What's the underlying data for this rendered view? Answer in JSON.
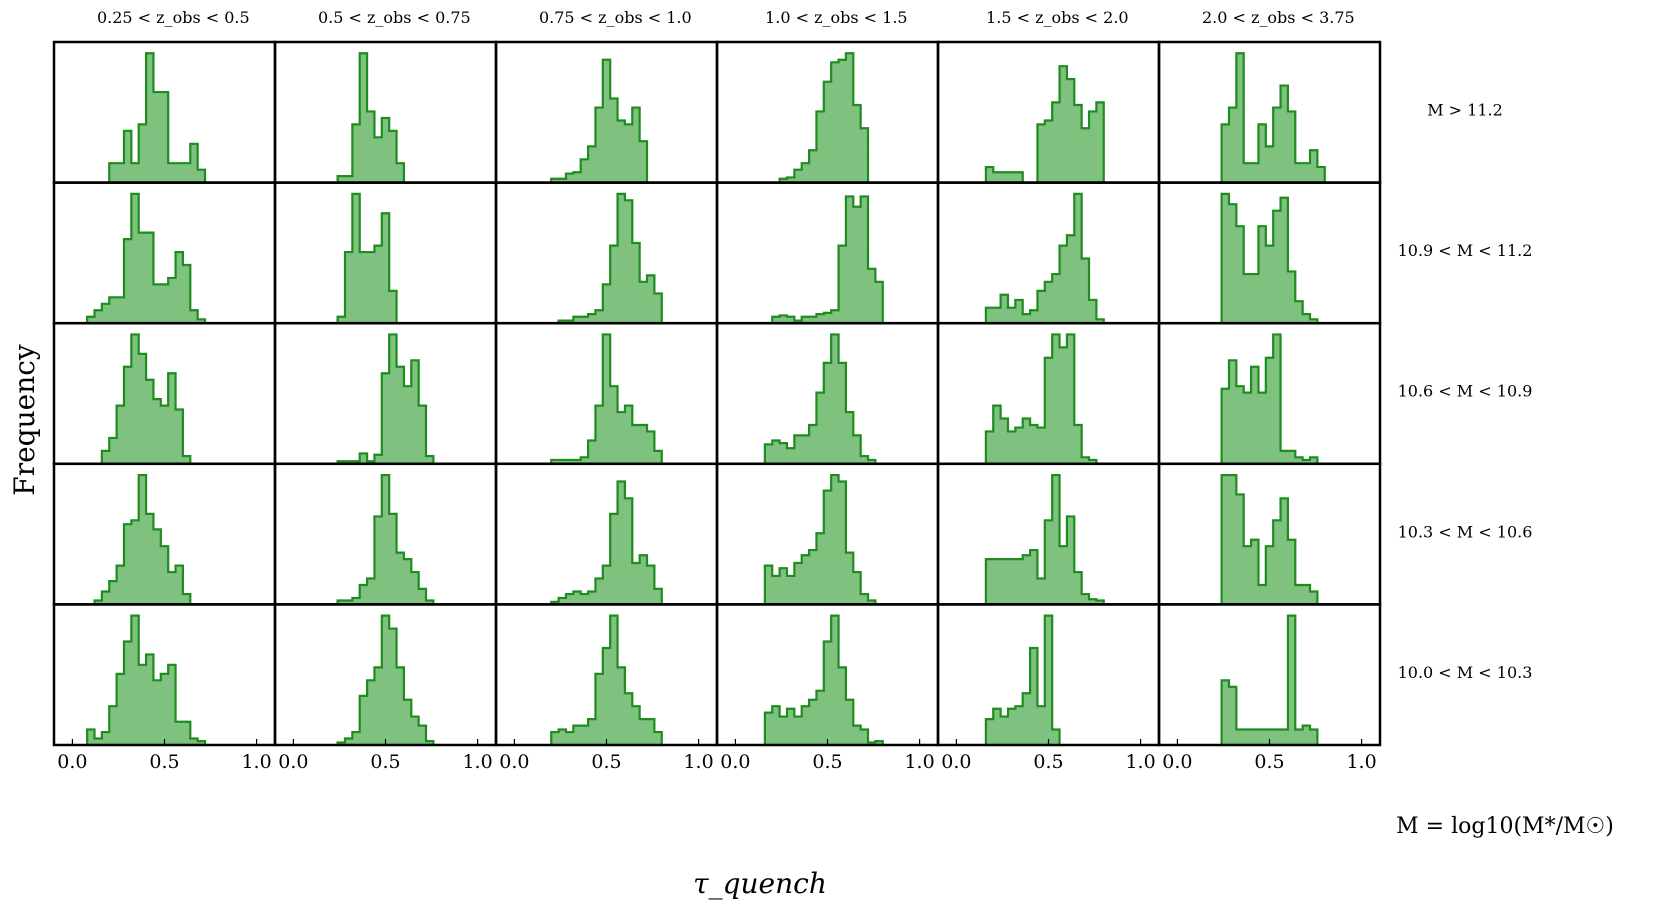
{
  "chart_data": {
    "type": "histogram-grid",
    "ylabel": "Frequency",
    "xlabel": "τ_quench",
    "mass_definition": "M = log10(M*/M☉)",
    "x_ticks": [
      "0.0",
      "0.5",
      "1.0"
    ],
    "x_tick_values": [
      0.0,
      0.5,
      1.0
    ],
    "xlim": [
      -0.1,
      1.1
    ],
    "grid": false,
    "legend": "none",
    "colors": {
      "fill": "#7fc17f",
      "edge": "#1f8c1f",
      "frame": "#000000"
    },
    "columns": [
      {
        "label": "0.25 < z_obs < 0.5"
      },
      {
        "label": "0.5 < z_obs < 0.75"
      },
      {
        "label": "0.75 < z_obs < 1.0"
      },
      {
        "label": "1.0 < z_obs < 1.5"
      },
      {
        "label": "1.5 < z_obs < 2.0"
      },
      {
        "label": "2.0 < z_obs < 3.75"
      }
    ],
    "rows": [
      {
        "label": "M > 11.2"
      },
      {
        "label": "10.9 < M < 11.2"
      },
      {
        "label": "10.6 < M < 10.9"
      },
      {
        "label": "10.3 < M < 10.6"
      },
      {
        "label": "10.0 < M < 10.3"
      }
    ],
    "bin_start": 0.0,
    "bin_width": 0.04,
    "histograms": [
      [
        [
          0,
          0,
          0,
          0,
          0,
          0.15,
          0.15,
          0.4,
          0.15,
          0.45,
          1.0,
          0.7,
          0.7,
          0.15,
          0.15,
          0.15,
          0.3,
          0.1,
          0,
          0
        ],
        [
          0,
          0,
          0,
          0,
          0,
          0,
          0.05,
          0.05,
          0.45,
          1.0,
          0.55,
          0.35,
          0.5,
          0.4,
          0.15,
          0,
          0,
          0,
          0,
          0
        ],
        [
          0,
          0,
          0,
          0,
          0,
          0.03,
          0.03,
          0.07,
          0.08,
          0.18,
          0.28,
          0.58,
          0.95,
          0.65,
          0.48,
          0.45,
          0.58,
          0.32,
          0,
          0
        ],
        [
          0,
          0,
          0,
          0,
          0,
          0,
          0.03,
          0.04,
          0.1,
          0.15,
          0.25,
          0.55,
          0.78,
          0.93,
          0.95,
          1.0,
          0.6,
          0.42,
          0,
          0
        ],
        [
          0,
          0,
          0,
          0,
          0.12,
          0.08,
          0.08,
          0.08,
          0.08,
          0,
          0,
          0.45,
          0.48,
          0.62,
          0.9,
          0.8,
          0.6,
          0.42,
          0.55,
          0.62
        ],
        [
          0,
          0,
          0,
          0,
          0,
          0,
          0.45,
          0.58,
          1.0,
          0.15,
          0.15,
          0.45,
          0.28,
          0.58,
          0.75,
          0.55,
          0.15,
          0.15,
          0.25,
          0.12
        ]
      ],
      [
        [
          0,
          0,
          0.05,
          0.1,
          0.15,
          0.2,
          0.2,
          0.65,
          1.0,
          0.7,
          0.7,
          0.3,
          0.3,
          0.35,
          0.55,
          0.45,
          0.1,
          0.03,
          0,
          0
        ],
        [
          0,
          0,
          0,
          0,
          0,
          0,
          0.05,
          0.55,
          1.0,
          0.55,
          0.55,
          0.6,
          0.85,
          0.25,
          0,
          0,
          0,
          0,
          0,
          0
        ],
        [
          0,
          0,
          0,
          0,
          0,
          0,
          0.02,
          0.02,
          0.05,
          0.05,
          0.07,
          0.1,
          0.3,
          0.6,
          1.0,
          0.95,
          0.62,
          0.32,
          0.37,
          0.23
        ],
        [
          0,
          0,
          0,
          0,
          0,
          0.05,
          0.06,
          0.05,
          0.02,
          0.05,
          0.05,
          0.07,
          0.08,
          0.1,
          0.6,
          0.98,
          0.9,
          0.98,
          0.42,
          0.32
        ],
        [
          0,
          0,
          0,
          0,
          0.12,
          0.12,
          0.22,
          0.12,
          0.18,
          0.07,
          0.1,
          0.25,
          0.32,
          0.38,
          0.6,
          0.68,
          1.0,
          0.5,
          0.18,
          0.03
        ],
        [
          0,
          0,
          0,
          0,
          0,
          0,
          1.0,
          0.92,
          0.75,
          0.38,
          0.38,
          0.75,
          0.6,
          0.87,
          0.97,
          0.4,
          0.17,
          0.07,
          0.03,
          0
        ]
      ],
      [
        [
          0,
          0,
          0,
          0,
          0.1,
          0.2,
          0.45,
          0.75,
          1.0,
          0.85,
          0.65,
          0.5,
          0.45,
          0.7,
          0.42,
          0.06,
          0,
          0,
          0,
          0
        ],
        [
          0,
          0,
          0,
          0,
          0,
          0,
          0.02,
          0.02,
          0.02,
          0.08,
          0.02,
          0.07,
          0.7,
          1.0,
          0.75,
          0.6,
          0.8,
          0.45,
          0.06,
          0
        ],
        [
          0,
          0,
          0,
          0,
          0,
          0.03,
          0.03,
          0.03,
          0.03,
          0.05,
          0.18,
          0.45,
          1.0,
          0.6,
          0.4,
          0.45,
          0.3,
          0.3,
          0.25,
          0.1
        ],
        [
          0,
          0,
          0,
          0,
          0.15,
          0.18,
          0.16,
          0.12,
          0.22,
          0.22,
          0.3,
          0.55,
          0.78,
          1.0,
          0.78,
          0.4,
          0.22,
          0.06,
          0.03,
          0
        ],
        [
          0,
          0,
          0,
          0,
          0.25,
          0.45,
          0.35,
          0.25,
          0.28,
          0.35,
          0.3,
          0.28,
          0.82,
          1.0,
          0.9,
          1.0,
          0.3,
          0.05,
          0.03,
          0
        ],
        [
          0,
          0,
          0,
          0,
          0,
          0,
          0.58,
          0.8,
          0.6,
          0.55,
          0.75,
          0.55,
          0.82,
          1.0,
          0.1,
          0.1,
          0.05,
          0.03,
          0.05,
          0
        ]
      ],
      [
        [
          0,
          0,
          0,
          0.03,
          0.1,
          0.18,
          0.3,
          0.62,
          0.65,
          1.0,
          0.7,
          0.58,
          0.45,
          0.25,
          0.3,
          0.08,
          0,
          0,
          0,
          0
        ],
        [
          0,
          0,
          0,
          0,
          0,
          0,
          0.03,
          0.03,
          0.05,
          0.15,
          0.2,
          0.68,
          1.0,
          0.7,
          0.4,
          0.35,
          0.25,
          0.12,
          0.03,
          0
        ],
        [
          0,
          0,
          0,
          0,
          0,
          0.02,
          0.05,
          0.08,
          0.1,
          0.08,
          0.1,
          0.2,
          0.3,
          0.7,
          0.95,
          0.82,
          0.32,
          0.38,
          0.3,
          0.12
        ],
        [
          0,
          0,
          0,
          0,
          0.3,
          0.22,
          0.28,
          0.22,
          0.32,
          0.38,
          0.42,
          0.55,
          0.88,
          1.0,
          0.95,
          0.4,
          0.25,
          0.08,
          0.03,
          0
        ],
        [
          0,
          0,
          0,
          0,
          0.35,
          0.35,
          0.35,
          0.35,
          0.35,
          0.38,
          0.42,
          0.2,
          0.65,
          1.0,
          0.45,
          0.68,
          0.25,
          0.08,
          0.04,
          0.03
        ],
        [
          0,
          0,
          0,
          0,
          0,
          0,
          1.0,
          1.0,
          0.85,
          0.45,
          0.5,
          0.15,
          0.45,
          0.65,
          0.82,
          0.5,
          0.15,
          0.15,
          0.1,
          0
        ]
      ],
      [
        [
          0,
          0,
          0.12,
          0.05,
          0.1,
          0.3,
          0.55,
          0.8,
          1.0,
          0.62,
          0.7,
          0.5,
          0.55,
          0.62,
          0.18,
          0.18,
          0.05,
          0.03,
          0,
          0
        ],
        [
          0,
          0,
          0,
          0,
          0,
          0,
          0.02,
          0.05,
          0.1,
          0.38,
          0.5,
          0.6,
          1.0,
          0.9,
          0.6,
          0.35,
          0.22,
          0.15,
          0.03,
          0
        ],
        [
          0,
          0,
          0,
          0,
          0,
          0.1,
          0.12,
          0.1,
          0.15,
          0.15,
          0.2,
          0.55,
          0.75,
          1.0,
          0.6,
          0.4,
          0.3,
          0.2,
          0.2,
          0.1
        ],
        [
          0,
          0,
          0,
          0,
          0.25,
          0.3,
          0.22,
          0.28,
          0.22,
          0.3,
          0.35,
          0.42,
          0.8,
          1.0,
          0.6,
          0.35,
          0.15,
          0.12,
          0.02,
          0.03
        ],
        [
          0,
          0,
          0,
          0,
          0.2,
          0.28,
          0.22,
          0.28,
          0.3,
          0.4,
          0.75,
          0.3,
          1.0,
          0.12,
          0,
          0,
          0,
          0,
          0,
          0
        ],
        [
          0,
          0,
          0,
          0,
          0,
          0,
          0.5,
          0.45,
          0.12,
          0.12,
          0.12,
          0.12,
          0.12,
          0.12,
          0.12,
          1.0,
          0.12,
          0.15,
          0.12,
          0
        ]
      ]
    ]
  }
}
